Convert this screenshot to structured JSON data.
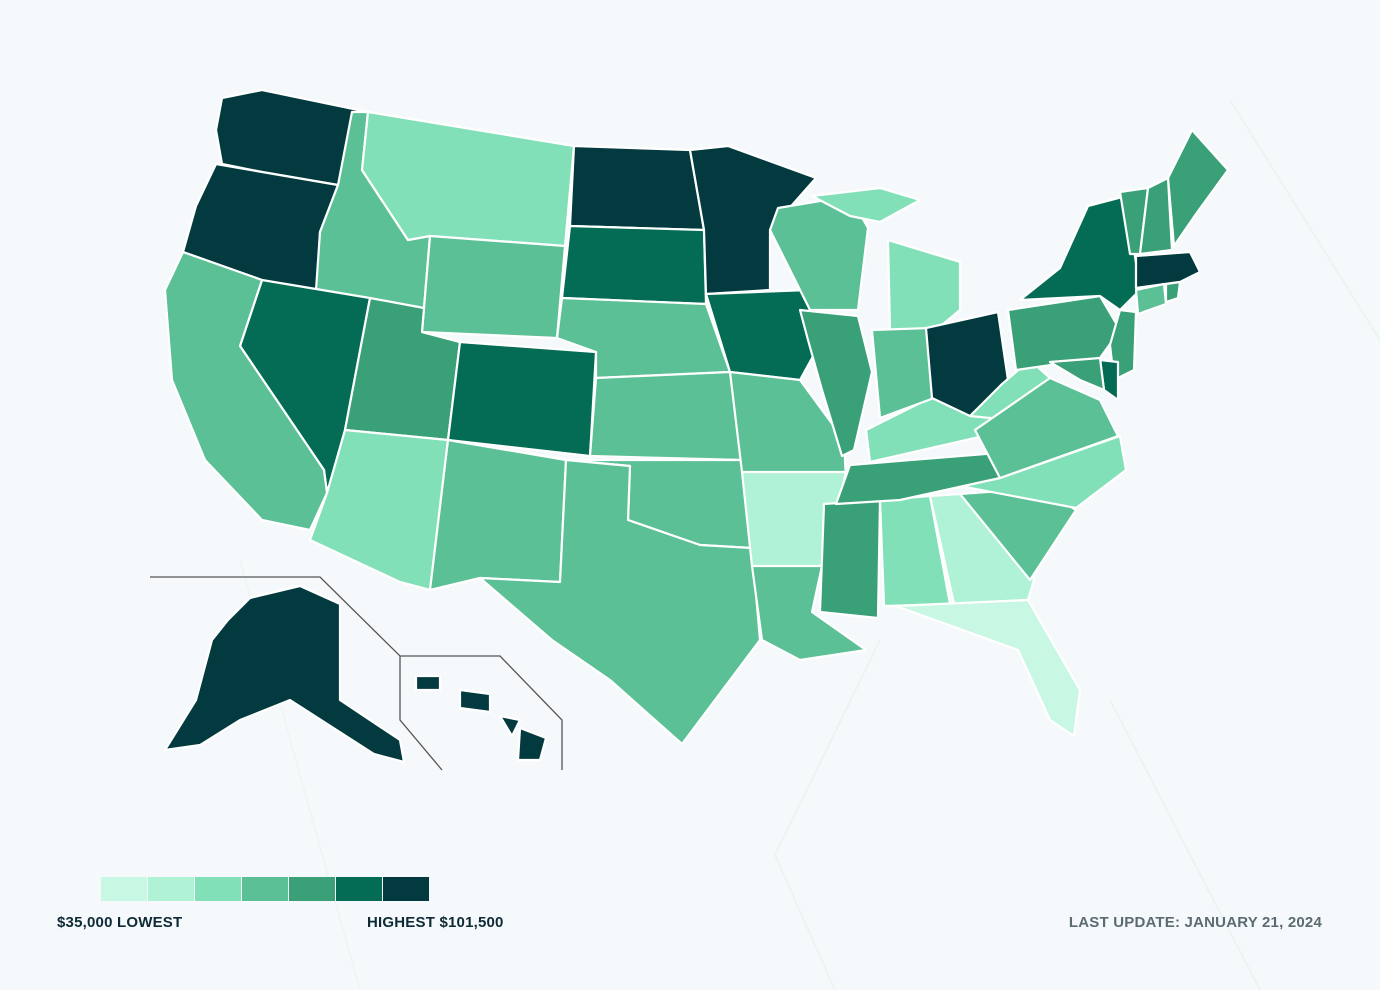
{
  "legend": {
    "low_label": "$35,000 LOWEST",
    "high_label": "HIGHEST $101,500",
    "colors": [
      "#c8f7e3",
      "#b0f2d6",
      "#82e0b9",
      "#5bc095",
      "#3aa077",
      "#046c54",
      "#033a3f"
    ]
  },
  "last_update": "LAST UPDATE: JANUARY 21, 2024",
  "states": {
    "WA": 6,
    "OR": 6,
    "ID": 3,
    "MT": 2,
    "WY": 3,
    "ND": 6,
    "SD": 5,
    "MN": 6,
    "NE": 3,
    "IA": 5,
    "WI": 3,
    "MI": 2,
    "NV": 5,
    "CA": 3,
    "UT": 4,
    "CO": 5,
    "AZ": 2,
    "NM": 3,
    "KS": 3,
    "OK": 3,
    "TX": 3,
    "MO": 3,
    "AR": 1,
    "LA": 3,
    "MS": 4,
    "AL": 2,
    "GA": 1,
    "FL": 0,
    "SC": 3,
    "NC": 2,
    "TN": 4,
    "KY": 2,
    "IL": 4,
    "IN": 3,
    "OH": 6,
    "WV": 2,
    "VA": 3,
    "PA": 4,
    "NY": 5,
    "ME": 4,
    "VT": 4,
    "NH": 4,
    "MA": 6,
    "RI": 4,
    "CT": 3,
    "NJ": 4,
    "DE": 5,
    "MD": 4,
    "AK": 6,
    "HI": 6
  },
  "icons": [
    "inset-frame-line"
  ]
}
